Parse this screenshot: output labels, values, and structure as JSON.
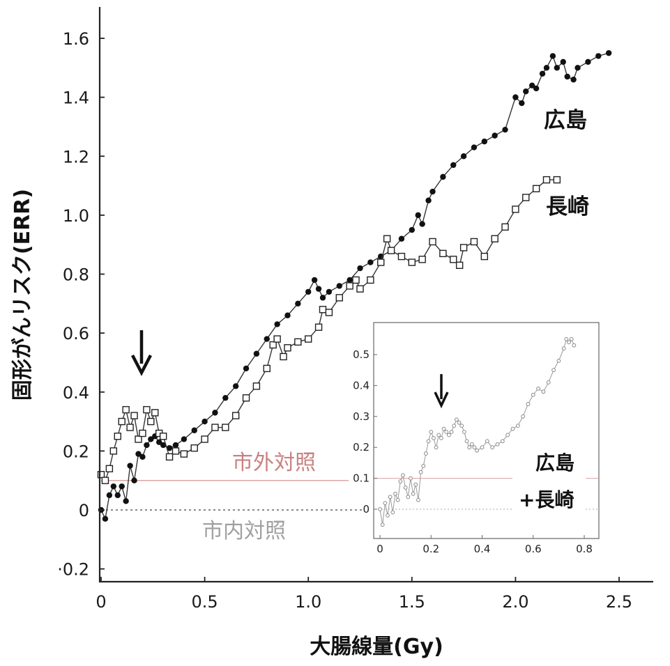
{
  "chart_data": [
    {
      "type": "line",
      "title": "",
      "xlabel": "大腸線量(Gy)",
      "ylabel": "固形がんリスク(ERR)",
      "xlim": [
        0,
        2.7
      ],
      "ylim": [
        -0.25,
        1.7
      ],
      "x_ticks": [
        0,
        0.5,
        1.0,
        1.5,
        2.0,
        2.5
      ],
      "x_tick_labels": [
        "0",
        "0.5",
        "1.0",
        "1.5",
        "2.0",
        "2.5"
      ],
      "y_ticks": [
        -0.2,
        0,
        0.2,
        0.4,
        0.6,
        0.8,
        1.0,
        1.2,
        1.4,
        1.6
      ],
      "y_tick_labels": [
        "·0.2",
        "0",
        "0.2",
        "0.4",
        "0.6",
        "0.8",
        "1.0",
        "1.2",
        "1.4",
        "1.6"
      ],
      "grid": false,
      "series": [
        {
          "name": "広島",
          "marker": "filled-circle",
          "color": "#111111",
          "x": [
            0.0,
            0.02,
            0.04,
            0.06,
            0.08,
            0.1,
            0.12,
            0.14,
            0.16,
            0.18,
            0.2,
            0.22,
            0.24,
            0.26,
            0.28,
            0.3,
            0.33,
            0.36,
            0.4,
            0.45,
            0.5,
            0.55,
            0.6,
            0.65,
            0.7,
            0.75,
            0.8,
            0.85,
            0.9,
            0.95,
            1.0,
            1.03,
            1.05,
            1.07,
            1.1,
            1.15,
            1.2,
            1.25,
            1.3,
            1.35,
            1.4,
            1.45,
            1.5,
            1.53,
            1.55,
            1.58,
            1.6,
            1.65,
            1.7,
            1.75,
            1.8,
            1.85,
            1.9,
            1.95,
            2.0,
            2.03,
            2.05,
            2.08,
            2.1,
            2.13,
            2.15,
            2.18,
            2.2,
            2.23,
            2.25,
            2.28,
            2.3,
            2.35,
            2.4,
            2.45
          ],
          "y": [
            0.0,
            -0.03,
            0.05,
            0.08,
            0.05,
            0.08,
            0.03,
            0.15,
            0.1,
            0.19,
            0.18,
            0.22,
            0.24,
            0.25,
            0.23,
            0.22,
            0.21,
            0.22,
            0.24,
            0.27,
            0.3,
            0.33,
            0.38,
            0.42,
            0.48,
            0.53,
            0.58,
            0.63,
            0.66,
            0.7,
            0.74,
            0.78,
            0.75,
            0.72,
            0.74,
            0.76,
            0.78,
            0.82,
            0.84,
            0.86,
            0.88,
            0.92,
            0.95,
            1.0,
            0.97,
            1.05,
            1.08,
            1.13,
            1.17,
            1.2,
            1.23,
            1.25,
            1.27,
            1.29,
            1.4,
            1.38,
            1.42,
            1.44,
            1.43,
            1.48,
            1.5,
            1.54,
            1.5,
            1.52,
            1.47,
            1.46,
            1.5,
            1.52,
            1.54,
            1.55
          ]
        },
        {
          "name": "長崎",
          "marker": "open-square",
          "color": "#111111",
          "x": [
            0.0,
            0.02,
            0.04,
            0.06,
            0.08,
            0.1,
            0.12,
            0.14,
            0.16,
            0.18,
            0.2,
            0.22,
            0.24,
            0.26,
            0.28,
            0.3,
            0.33,
            0.36,
            0.4,
            0.45,
            0.5,
            0.55,
            0.6,
            0.65,
            0.7,
            0.75,
            0.8,
            0.83,
            0.85,
            0.88,
            0.9,
            0.95,
            1.0,
            1.05,
            1.07,
            1.1,
            1.15,
            1.2,
            1.23,
            1.25,
            1.3,
            1.35,
            1.38,
            1.4,
            1.45,
            1.5,
            1.55,
            1.6,
            1.65,
            1.7,
            1.73,
            1.75,
            1.8,
            1.85,
            1.9,
            1.95,
            2.0,
            2.05,
            2.1,
            2.15,
            2.2
          ],
          "y": [
            0.12,
            0.1,
            0.14,
            0.2,
            0.25,
            0.3,
            0.34,
            0.28,
            0.32,
            0.24,
            0.26,
            0.34,
            0.3,
            0.33,
            0.26,
            0.25,
            0.18,
            0.2,
            0.19,
            0.21,
            0.24,
            0.28,
            0.28,
            0.32,
            0.38,
            0.42,
            0.48,
            0.56,
            0.58,
            0.52,
            0.55,
            0.57,
            0.58,
            0.62,
            0.68,
            0.67,
            0.72,
            0.76,
            0.78,
            0.75,
            0.78,
            0.84,
            0.92,
            0.88,
            0.86,
            0.84,
            0.85,
            0.91,
            0.87,
            0.85,
            0.83,
            0.89,
            0.91,
            0.86,
            0.92,
            0.96,
            1.02,
            1.06,
            1.09,
            1.12,
            1.12
          ]
        }
      ],
      "reference_lines": [
        {
          "name": "市外対照",
          "y": 0.1,
          "color": "#d9a0a0",
          "style": "solid"
        },
        {
          "name": "市内対照",
          "y": 0.0,
          "color": "#888888",
          "style": "dotted"
        }
      ],
      "annotations": [
        {
          "label": "広島",
          "color": "#111111"
        },
        {
          "label": "長崎",
          "color": "#111111"
        },
        {
          "label": "市外対照",
          "color": "#c98181"
        },
        {
          "label": "市内対照",
          "color": "#a0a0a0"
        },
        {
          "label": "arrow",
          "x": 0.2
        }
      ]
    },
    {
      "type": "line",
      "title": "",
      "xlabel": "",
      "ylabel": "",
      "xlim": [
        -0.02,
        0.85
      ],
      "ylim": [
        -0.07,
        0.6
      ],
      "x_ticks": [
        0,
        0.2,
        0.4,
        0.6,
        0.8
      ],
      "x_tick_labels": [
        "0",
        "0.2",
        "0.4",
        "0.6",
        "0.8"
      ],
      "y_ticks": [
        0,
        0.1,
        0.2,
        0.3,
        0.4,
        0.5
      ],
      "y_tick_labels": [
        "0",
        "0.1",
        "0.2",
        "0.3",
        "0.4",
        "0.5"
      ],
      "grid": false,
      "series": [
        {
          "name": "広島+長崎",
          "marker": "open-circle",
          "color": "#888888",
          "x": [
            0.0,
            0.01,
            0.02,
            0.03,
            0.04,
            0.05,
            0.06,
            0.07,
            0.08,
            0.09,
            0.1,
            0.11,
            0.12,
            0.13,
            0.14,
            0.15,
            0.16,
            0.17,
            0.18,
            0.19,
            0.2,
            0.21,
            0.22,
            0.23,
            0.24,
            0.25,
            0.26,
            0.27,
            0.28,
            0.29,
            0.3,
            0.31,
            0.32,
            0.33,
            0.34,
            0.35,
            0.36,
            0.37,
            0.38,
            0.4,
            0.42,
            0.44,
            0.46,
            0.48,
            0.5,
            0.52,
            0.54,
            0.56,
            0.58,
            0.6,
            0.62,
            0.64,
            0.66,
            0.68,
            0.7,
            0.72,
            0.73,
            0.74,
            0.75,
            0.76
          ],
          "y": [
            0.0,
            -0.05,
            0.02,
            -0.02,
            0.04,
            -0.01,
            0.05,
            0.03,
            0.09,
            0.11,
            0.07,
            0.04,
            0.1,
            0.05,
            0.08,
            0.03,
            0.12,
            0.14,
            0.18,
            0.22,
            0.25,
            0.23,
            0.2,
            0.24,
            0.23,
            0.26,
            0.25,
            0.24,
            0.25,
            0.27,
            0.29,
            0.28,
            0.27,
            0.25,
            0.22,
            0.2,
            0.21,
            0.2,
            0.19,
            0.2,
            0.22,
            0.2,
            0.21,
            0.22,
            0.24,
            0.26,
            0.27,
            0.3,
            0.34,
            0.37,
            0.39,
            0.38,
            0.41,
            0.45,
            0.48,
            0.52,
            0.55,
            0.54,
            0.55,
            0.53
          ]
        }
      ],
      "reference_lines": [
        {
          "y": 0.1,
          "color": "#d9a0a0",
          "style": "solid"
        },
        {
          "y": 0.0,
          "color": "#aaaaaa",
          "style": "dotted"
        }
      ],
      "annotations": [
        {
          "label": "広島",
          "color": "#111111"
        },
        {
          "label": "+長崎",
          "color": "#111111"
        },
        {
          "label": "arrow",
          "x": 0.24
        }
      ]
    }
  ]
}
